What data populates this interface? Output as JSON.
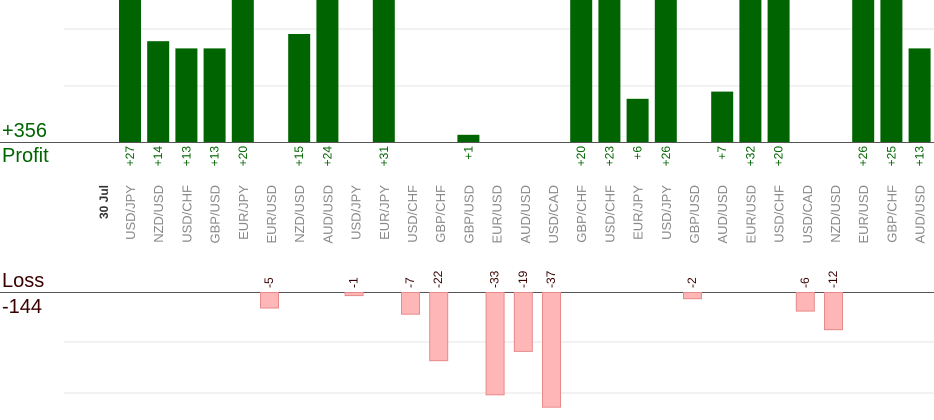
{
  "summary": {
    "profit_total": "+356",
    "profit_label": "Profit",
    "loss_label": "Loss",
    "loss_total": "-144"
  },
  "colors": {
    "profit_bar": "#006400",
    "profit_text": "#006400",
    "loss_bar_fill": "#ffb6b6",
    "loss_bar_stroke": "#e88a8a",
    "loss_text": "#3a0000",
    "axis": "#555555",
    "grid": "#e4e4e4",
    "pair_label": "#888888",
    "date_label": "#333333"
  },
  "chart_data": {
    "type": "bar",
    "date_label": "30 Jul",
    "categories": [
      "USD/JPY",
      "NZD/USD",
      "USD/CHF",
      "GBP/USD",
      "EUR/JPY",
      "EUR/USD",
      "NZD/USD",
      "AUD/USD",
      "USD/JPY",
      "EUR/JPY",
      "USD/CHF",
      "GBP/CHF",
      "GBP/USD",
      "EUR/USD",
      "AUD/USD",
      "USD/CAD",
      "GBP/CHF",
      "USD/CHF",
      "EUR/JPY",
      "USD/JPY",
      "GBP/USD",
      "AUD/USD",
      "EUR/USD",
      "USD/CHF",
      "USD/CAD",
      "NZD/USD",
      "EUR/USD",
      "GBP/CHF",
      "AUD/USD"
    ],
    "values": [
      27,
      14,
      13,
      13,
      20,
      -5,
      15,
      24,
      -1,
      31,
      -7,
      -22,
      1,
      -33,
      -19,
      -37,
      20,
      23,
      6,
      26,
      -2,
      7,
      32,
      20,
      -6,
      -12,
      26,
      25,
      13
    ],
    "value_labels": [
      "+27",
      "+14",
      "+13",
      "+13",
      "+20",
      "-5",
      "+15",
      "+24",
      "-1",
      "+31",
      "-7",
      "-22",
      "+1",
      "-33",
      "-19",
      "-37",
      "+20",
      "+23",
      "+6",
      "+26",
      "-2",
      "+7",
      "+32",
      "+20",
      "-6",
      "-12",
      "+26",
      "+25",
      "+13"
    ],
    "series": [
      {
        "values": [
          27,
          14,
          13,
          13,
          20,
          -5,
          15,
          24,
          -1,
          31,
          -7,
          -22,
          1,
          -33,
          -19,
          -37,
          20,
          23,
          6,
          26,
          -2,
          7,
          32,
          20,
          -6,
          -12,
          26,
          25,
          13
        ]
      }
    ],
    "grid": true
  }
}
